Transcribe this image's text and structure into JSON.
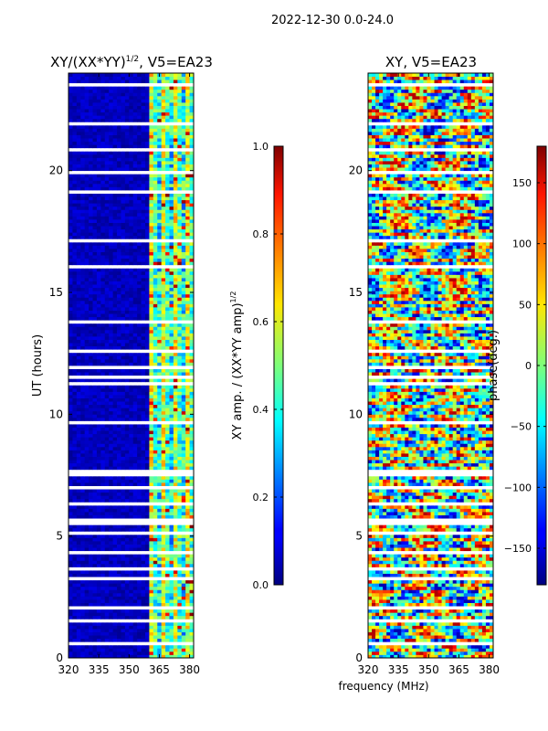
{
  "chart_data": {
    "suptitle": "2022-12-30 0.0-24.0",
    "shared_xlabel": "frequency (MHz)",
    "panels": [
      {
        "type": "heatmap",
        "title_main": "XY/(XX*YY)",
        "title_sup": "1/2",
        "title_tail": ", V5=EA23",
        "ylabel": "UT (hours)",
        "xlim": [
          320,
          382
        ],
        "ylim": [
          0,
          24
        ],
        "xticks": [
          320,
          335,
          350,
          365,
          380
        ],
        "yticks": [
          0,
          5,
          10,
          15,
          20
        ],
        "colorbar": {
          "label_main": "XY amp. / (XX*YY amp)",
          "label_sup": "1/2",
          "range": [
            0.0,
            1.0
          ],
          "ticks": [
            "0.0",
            "0.2",
            "0.4",
            "0.6",
            "0.8",
            "1.0"
          ],
          "tick_values": [
            0.0,
            0.2,
            0.4,
            0.6,
            0.8,
            1.0
          ]
        }
      },
      {
        "type": "heatmap",
        "title_main": "XY, V5=EA23",
        "xlim": [
          320,
          382
        ],
        "ylim": [
          0,
          24
        ],
        "xticks": [
          320,
          335,
          350,
          365,
          380
        ],
        "yticks": [
          0,
          5,
          10,
          15,
          20
        ],
        "colorbar": {
          "label_main": "phase(deg.)",
          "range": [
            -180,
            180
          ],
          "ticks": [
            "−150",
            "−100",
            "−50",
            "0",
            "50",
            "100",
            "150"
          ],
          "tick_values": [
            -150,
            -100,
            -50,
            0,
            50,
            100,
            150
          ]
        }
      }
    ],
    "gap_hours": [
      0.6,
      1.5,
      2.1,
      3.2,
      3.6,
      4.3,
      5.1,
      5.6,
      6.3,
      7.0,
      7.5,
      7.7,
      9.6,
      11.2,
      11.5,
      11.9,
      12.6,
      13.8,
      16.1,
      17.1,
      19.1,
      19.9,
      20.8,
      21.9,
      23.5
    ],
    "colormap": "jet"
  }
}
